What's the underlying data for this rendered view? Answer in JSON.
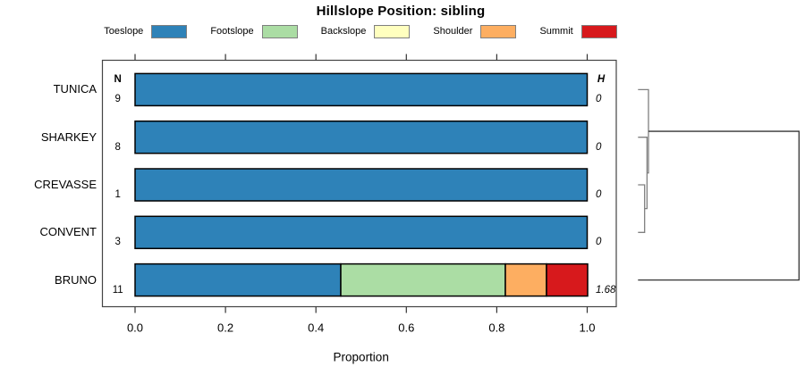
{
  "title": "Hillslope Position: sibling",
  "chart_data": {
    "type": "bar",
    "subtype": "horizontal-stacked-proportion",
    "title": "Hillslope Position: sibling",
    "xlabel": "Proportion",
    "xlim": [
      0.0,
      1.0
    ],
    "x_tick_labels": [
      "0.0",
      "0.2",
      "0.4",
      "0.6",
      "0.8",
      "1.0"
    ],
    "x_tick_values": [
      0.0,
      0.2,
      0.4,
      0.6,
      0.8,
      1.0
    ],
    "grid": false,
    "legend_position": "top",
    "legend": [
      {
        "label": "Toeslope",
        "color": "#2e82b8"
      },
      {
        "label": "Footslope",
        "color": "#abdda4"
      },
      {
        "label": "Backslope",
        "color": "#ffffbf"
      },
      {
        "label": "Shoulder",
        "color": "#fdae61"
      },
      {
        "label": "Summit",
        "color": "#d7191c"
      }
    ],
    "columns": {
      "n_header": "N",
      "h_header": "H"
    },
    "rows": [
      {
        "label": "TUNICA",
        "n": "9",
        "entropy": "0",
        "segments": [
          {
            "name": "Toeslope",
            "value": 1.0
          }
        ]
      },
      {
        "label": "SHARKEY",
        "n": "8",
        "entropy": "0",
        "segments": [
          {
            "name": "Toeslope",
            "value": 1.0
          }
        ]
      },
      {
        "label": "CREVASSE",
        "n": "1",
        "entropy": "0",
        "segments": [
          {
            "name": "Toeslope",
            "value": 1.0
          }
        ]
      },
      {
        "label": "CONVENT",
        "n": "3",
        "entropy": "0",
        "segments": [
          {
            "name": "Toeslope",
            "value": 1.0
          }
        ]
      },
      {
        "label": "BRUNO",
        "n": "11",
        "entropy": "1.68",
        "segments": [
          {
            "name": "Toeslope",
            "value": 0.455
          },
          {
            "name": "Footslope",
            "value": 0.364
          },
          {
            "name": "Shoulder",
            "value": 0.091
          },
          {
            "name": "Summit",
            "value": 0.091
          }
        ]
      }
    ],
    "dendrogram": {
      "orientation": "right",
      "leaf_order": [
        "TUNICA",
        "SHARKEY",
        "CREVASSE",
        "CONVENT",
        "BRUNO"
      ],
      "merges": [
        {
          "id": "m1",
          "a": "CREVASSE",
          "b": "CONVENT",
          "height": 0.041
        },
        {
          "id": "m2",
          "a": "SHARKEY",
          "b": "m1",
          "height": 0.056
        },
        {
          "id": "m3",
          "a": "TUNICA",
          "b": "m2",
          "height": 0.065
        },
        {
          "id": "m4",
          "a": "m3",
          "b": "BRUNO",
          "height": 1.0
        }
      ]
    }
  }
}
